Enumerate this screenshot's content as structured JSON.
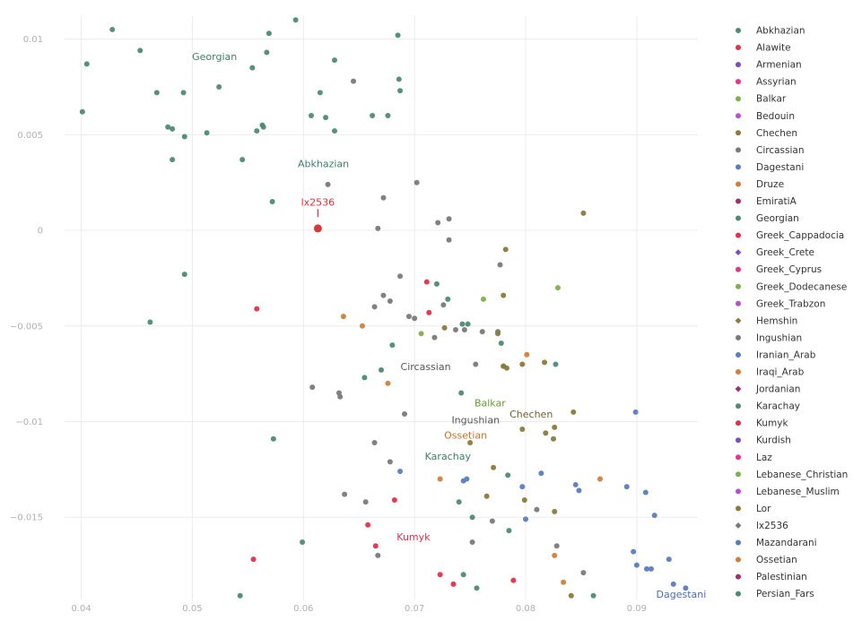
{
  "chart_data": {
    "type": "scatter",
    "title": "",
    "xlabel": "",
    "ylabel": "",
    "xlim": [
      0.0385,
      0.0955
    ],
    "ylim": [
      -0.0193,
      0.0112
    ],
    "x_ticks": [
      0.04,
      0.05,
      0.06,
      0.07,
      0.08,
      0.09
    ],
    "x_tick_labels": [
      "0.04",
      "0.05",
      "0.06",
      "0.07",
      "0.08",
      "0.09"
    ],
    "y_ticks": [
      0.01,
      0.005,
      0,
      -0.005,
      -0.01,
      -0.015
    ],
    "y_tick_labels": [
      "0.01",
      "0.005",
      "0",
      "−0.005",
      "−0.01",
      "−0.015"
    ],
    "grid": true,
    "legend_position": "right",
    "legend": [
      {
        "name": "Abkhazian",
        "color": "#4e8a75",
        "symbol": "circle"
      },
      {
        "name": "Alawite",
        "color": "#e0304a",
        "symbol": "circle"
      },
      {
        "name": "Armenian",
        "color": "#7b4fb5",
        "symbol": "circle"
      },
      {
        "name": "Assyrian",
        "color": "#e3358b",
        "symbol": "circle"
      },
      {
        "name": "Balkar",
        "color": "#7fb04b",
        "symbol": "circle"
      },
      {
        "name": "Bedouin",
        "color": "#b84fd0",
        "symbol": "circle"
      },
      {
        "name": "Chechen",
        "color": "#8a7a3b",
        "symbol": "circle"
      },
      {
        "name": "Circassian",
        "color": "#7a7a7a",
        "symbol": "circle"
      },
      {
        "name": "Dagestani",
        "color": "#5b7dc0",
        "symbol": "circle"
      },
      {
        "name": "Druze",
        "color": "#d17f3a",
        "symbol": "circle"
      },
      {
        "name": "EmiratiA",
        "color": "#a0306e",
        "symbol": "circle"
      },
      {
        "name": "Georgian",
        "color": "#4e8a75",
        "symbol": "circle"
      },
      {
        "name": "Greek_Cappadocia",
        "color": "#e0304a",
        "symbol": "circle"
      },
      {
        "name": "Greek_Crete",
        "color": "#7b4fb5",
        "symbol": "diamond"
      },
      {
        "name": "Greek_Cyprus",
        "color": "#e3358b",
        "symbol": "circle"
      },
      {
        "name": "Greek_Dodecanese",
        "color": "#7fb04b",
        "symbol": "circle"
      },
      {
        "name": "Greek_Trabzon",
        "color": "#b84fd0",
        "symbol": "circle"
      },
      {
        "name": "Hemshin",
        "color": "#8a7a3b",
        "symbol": "diamond"
      },
      {
        "name": "Ingushian",
        "color": "#7a7a7a",
        "symbol": "circle"
      },
      {
        "name": "Iranian_Arab",
        "color": "#5b7dc0",
        "symbol": "circle"
      },
      {
        "name": "Iraqi_Arab",
        "color": "#d17f3a",
        "symbol": "circle"
      },
      {
        "name": "Jordanian",
        "color": "#a0306e",
        "symbol": "diamond"
      },
      {
        "name": "Karachay",
        "color": "#4e8a75",
        "symbol": "circle"
      },
      {
        "name": "Kumyk",
        "color": "#e0304a",
        "symbol": "circle"
      },
      {
        "name": "Kurdish",
        "color": "#7b4fb5",
        "symbol": "circle"
      },
      {
        "name": "Laz",
        "color": "#e3358b",
        "symbol": "circle"
      },
      {
        "name": "Lebanese_Christian",
        "color": "#7fb04b",
        "symbol": "circle"
      },
      {
        "name": "Lebanese_Muslim",
        "color": "#b84fd0",
        "symbol": "circle"
      },
      {
        "name": "Lor",
        "color": "#8a7a3b",
        "symbol": "circle"
      },
      {
        "name": "lx2536",
        "color": "#7a7a7a",
        "symbol": "diamond"
      },
      {
        "name": "Mazandarani",
        "color": "#5b7dc0",
        "symbol": "circle"
      },
      {
        "name": "Ossetian",
        "color": "#d17f3a",
        "symbol": "circle"
      },
      {
        "name": "Palestinian",
        "color": "#a0306e",
        "symbol": "circle"
      },
      {
        "name": "Persian_Fars",
        "color": "#4e8a75",
        "symbol": "circle"
      }
    ],
    "series": [
      {
        "name": "Georgian",
        "color": "#4e8a75",
        "x": [
          0.0401,
          0.0405,
          0.0428,
          0.0453,
          0.0468,
          0.0478,
          0.0482,
          0.0482,
          0.0492,
          0.0493,
          0.0493,
          0.0513,
          0.0524,
          0.0545,
          0.0554,
          0.0558,
          0.0563,
          0.0564,
          0.0567,
          0.0569,
          0.0572,
          0.0593,
          0.0607,
          0.0615,
          0.062,
          0.0628,
          0.0628,
          0.0662,
          0.0676,
          0.0685,
          0.0686,
          0.0687,
          0.0462,
          0.0573,
          0.0599,
          0.0543
        ],
        "y": [
          0.0062,
          0.0087,
          0.0105,
          0.0094,
          0.0072,
          0.0054,
          0.0037,
          0.0053,
          0.0072,
          0.0049,
          -0.0023,
          0.0051,
          0.0075,
          0.0037,
          0.0085,
          0.0052,
          0.0055,
          0.0054,
          0.0093,
          0.0103,
          0.0015,
          0.011,
          0.006,
          0.0072,
          0.0059,
          0.0089,
          0.0052,
          0.006,
          0.006,
          0.0102,
          0.0079,
          0.0073,
          -0.0048,
          -0.0109,
          -0.0163,
          -0.0191
        ]
      },
      {
        "name": "Circassian",
        "color": "#7a7a7a",
        "x": [
          0.0622,
          0.0645,
          0.0667,
          0.0672,
          0.0702,
          0.0721,
          0.0731,
          0.0731,
          0.0664,
          0.0672,
          0.0678,
          0.0687,
          0.0695,
          0.07,
          0.0718,
          0.0726,
          0.0737,
          0.0745,
          0.0755,
          0.0761,
          0.0775,
          0.0777,
          0.0608,
          0.0632,
          0.0633,
          0.0691,
          0.0664,
          0.0678,
          0.0637,
          0.0656,
          0.0667,
          0.0752,
          0.077,
          0.081,
          0.0828,
          0.0852
        ],
        "y": [
          0.0024,
          0.0078,
          0.0001,
          0.0017,
          0.0025,
          0.0004,
          0.0006,
          -0.0005,
          -0.004,
          -0.0034,
          -0.0037,
          -0.0024,
          -0.0045,
          -0.0046,
          -0.0056,
          -0.0039,
          -0.0052,
          -0.0052,
          -0.007,
          -0.0053,
          -0.0053,
          -0.0018,
          -0.0082,
          -0.0085,
          -0.0087,
          -0.0096,
          -0.0111,
          -0.0121,
          -0.0138,
          -0.0142,
          -0.017,
          -0.0163,
          -0.0152,
          -0.0146,
          -0.0165,
          -0.0179
        ]
      },
      {
        "name": "Chechen",
        "color": "#8a7a3b",
        "x": [
          0.0852,
          0.0782,
          0.078,
          0.0775,
          0.0797,
          0.0817,
          0.0843,
          0.0826,
          0.0825,
          0.0771,
          0.0799,
          0.0826,
          0.0818,
          0.0841,
          0.0727
        ],
        "y": [
          0.0009,
          -0.001,
          -0.0034,
          -0.0054,
          -0.007,
          -0.0069,
          -0.0095,
          -0.0103,
          -0.0109,
          -0.0124,
          -0.0141,
          -0.0147,
          -0.0106,
          -0.0191,
          -0.0051
        ]
      },
      {
        "name": "Lor",
        "color": "#8a7a3b",
        "x": [
          0.0797,
          0.0765,
          0.075,
          0.078,
          0.0783,
          0.078
        ],
        "y": [
          -0.0104,
          -0.0139,
          -0.0111,
          -0.0071,
          -0.0072,
          -0.0071
        ]
      },
      {
        "name": "Karachay",
        "color": "#4e8a75",
        "x": [
          0.072,
          0.073,
          0.0743,
          0.0748,
          0.0778,
          0.0827,
          0.068,
          0.067,
          0.0655,
          0.0742,
          0.0784,
          0.0744,
          0.0756,
          0.0752,
          0.0785,
          0.074,
          0.0861
        ],
        "y": [
          -0.0028,
          -0.0036,
          -0.0049,
          -0.0049,
          -0.0059,
          -0.007,
          -0.006,
          -0.0073,
          -0.0077,
          -0.0085,
          -0.0128,
          -0.018,
          -0.0187,
          -0.015,
          -0.0157,
          -0.0142,
          -0.0191
        ]
      },
      {
        "name": "Balkar",
        "color": "#7fb04b",
        "x": [
          0.0706,
          0.0762,
          0.0829
        ],
        "y": [
          -0.0054,
          -0.0036,
          -0.003
        ]
      },
      {
        "name": "Dagestani",
        "color": "#5b7dc0",
        "x": [
          0.0899,
          0.0916,
          0.0908,
          0.0913,
          0.0929,
          0.0933,
          0.0944,
          0.0897,
          0.09,
          0.0909,
          0.0845,
          0.0848,
          0.0891,
          0.0814,
          0.0797,
          0.08,
          0.0747,
          0.0744,
          0.0687
        ],
        "y": [
          -0.0095,
          -0.0149,
          -0.0137,
          -0.0177,
          -0.0172,
          -0.0185,
          -0.0187,
          -0.0168,
          -0.0175,
          -0.0177,
          -0.0133,
          -0.0136,
          -0.0134,
          -0.0127,
          -0.0134,
          -0.0151,
          -0.013,
          -0.0131,
          -0.0126
        ]
      },
      {
        "name": "Ossetian",
        "color": "#d17f3a",
        "x": [
          0.0636,
          0.0653,
          0.0676,
          0.0801,
          0.0867,
          0.0723,
          0.0834,
          0.0826
        ],
        "y": [
          -0.0045,
          -0.005,
          -0.008,
          -0.0065,
          -0.013,
          -0.013,
          -0.0184,
          -0.017
        ]
      },
      {
        "name": "Kumyk",
        "color": "#e0304a",
        "x": [
          0.0558,
          0.0711,
          0.0713,
          0.0682,
          0.0658,
          0.0665,
          0.0555,
          0.0723,
          0.0735,
          0.0789
        ],
        "y": [
          -0.0041,
          -0.0027,
          -0.0043,
          -0.0141,
          -0.0154,
          -0.0165,
          -0.0172,
          -0.018,
          -0.0185,
          -0.0183
        ]
      },
      {
        "name": "lx2536",
        "color": "#d33b3b",
        "x": [
          0.0613
        ],
        "y": [
          0.0001
        ]
      }
    ],
    "annotations": [
      {
        "text": "Georgian",
        "x": 0.052,
        "y": 0.0089,
        "color": "#3e7d66"
      },
      {
        "text": "Abkhazian",
        "x": 0.0618,
        "y": 0.0033,
        "color": "#3e7d66"
      },
      {
        "text": "lx2536",
        "x": 0.0613,
        "y": 0.0013,
        "color": "#e0303a",
        "highlight": true
      },
      {
        "text": "Circassian",
        "x": 0.071,
        "y": -0.0073,
        "color": "#555555"
      },
      {
        "text": "Balkar",
        "x": 0.0768,
        "y": -0.0092,
        "color": "#6a9d3a"
      },
      {
        "text": "Chechen",
        "x": 0.0805,
        "y": -0.0098,
        "color": "#6d6030"
      },
      {
        "text": "Ingushian",
        "x": 0.0755,
        "y": -0.0101,
        "color": "#555555"
      },
      {
        "text": "Ossetian",
        "x": 0.0746,
        "y": -0.0109,
        "color": "#c8702b"
      },
      {
        "text": "Karachay",
        "x": 0.073,
        "y": -0.012,
        "color": "#3e7d66"
      },
      {
        "text": "Kumyk",
        "x": 0.0699,
        "y": -0.0162,
        "color": "#e0304a"
      },
      {
        "text": "Dagestani",
        "x": 0.094,
        "y": -0.0192,
        "color": "#4a6db5"
      }
    ]
  }
}
